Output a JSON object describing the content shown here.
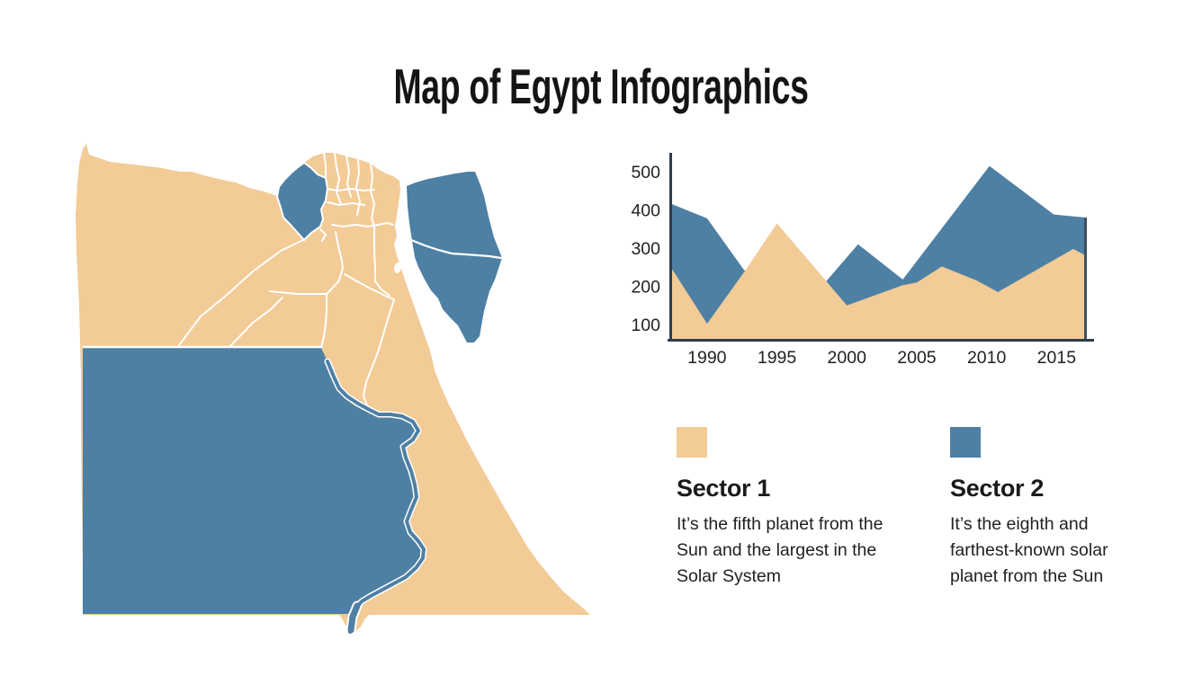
{
  "title": "Map of Egypt Infographics",
  "colors": {
    "sector1": "#F2CB96",
    "sector2": "#4E80A4",
    "axis": "#2E3D4C",
    "map_border": "#FFFFFF",
    "text": "#141414",
    "background": "#FFFFFF"
  },
  "chart_data": {
    "type": "area",
    "title": "",
    "xlabel": "",
    "ylabel": "",
    "x_ticks": [
      1990,
      1995,
      2000,
      2005,
      2010,
      2015
    ],
    "y_ticks": [
      100,
      200,
      300,
      400,
      500
    ],
    "x_range": [
      1987.5,
      2017.1
    ],
    "y_range_shown": [
      50,
      550
    ],
    "grid": false,
    "legend_position": "below-as-cards",
    "series": [
      {
        "name": "Sector 2",
        "color": "#4E80A4",
        "x": [
          1987.5,
          1990,
          1992.6,
          1995,
          1998.5,
          2000.8,
          2004,
          2010.2,
          2014.8,
          2017.1
        ],
        "values": [
          415,
          378,
          245,
          160,
          212,
          310,
          218,
          515,
          388,
          380
        ]
      },
      {
        "name": "Sector 1",
        "color": "#F2CB96",
        "x": [
          1987.5,
          1990,
          1992.8,
          1995,
          2000,
          2004,
          2005,
          2006.8,
          2009.3,
          2010.8,
          2016.2,
          2017.1
        ],
        "values": [
          245,
          102,
          245,
          365,
          150,
          203,
          210,
          252,
          215,
          185,
          298,
          280
        ]
      }
    ]
  },
  "legend": [
    {
      "label": "Sector 1",
      "description": "It’s the fifth planet from the Sun and the largest in the Solar System",
      "color": "#F2CB96"
    },
    {
      "label": "Sector 2",
      "description": "It’s the eighth and farthest-known solar planet from the Sun",
      "color": "#4E80A4"
    }
  ],
  "map": {
    "country": "Egypt",
    "regions": [
      {
        "name": "mainland",
        "colorKey": "sector1"
      },
      {
        "name": "southern-region",
        "colorKey": "sector2"
      },
      {
        "name": "beheira-delta-region",
        "colorKey": "sector2"
      },
      {
        "name": "sinai-region",
        "colorKey": "sector2"
      }
    ]
  }
}
